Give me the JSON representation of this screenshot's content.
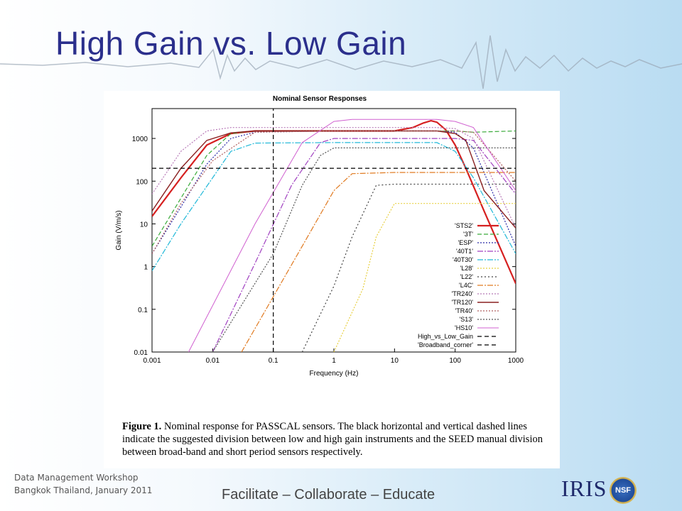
{
  "slide": {
    "title": "High Gain vs. Low Gain",
    "footer_line1": "Data  Management Workshop",
    "footer_line2": "Bangkok Thailand, January 2011",
    "tagline": "Facilitate – Collaborate – Educate",
    "logo_text": "IRIS",
    "nsf_text": "NSF"
  },
  "figure": {
    "caption_lead": "Figure 1.",
    "caption_text": " Nominal response for PASSCAL sensors.  The black horizontal and vertical dashed lines indicate the suggested division between low and high gain instruments and the SEED manual division between broad-band and short period sensors respectively."
  },
  "chart_data": {
    "type": "line",
    "title": "Nominal Sensor Responses",
    "xlabel": "Frequency (Hz)",
    "ylabel": "Gain (V/m/s)",
    "xscale": "log",
    "yscale": "log",
    "xlim": [
      0.001,
      1000
    ],
    "ylim": [
      0.01,
      5000
    ],
    "x_ticks": [
      "0.001",
      "0.01",
      "0.1",
      "1",
      "10",
      "100",
      "1000"
    ],
    "y_ticks": [
      "0.01",
      "0.1",
      "1",
      "10",
      "100",
      "1000"
    ],
    "legend_position": "bottom-right",
    "series": [
      {
        "name": "'STS2'",
        "color": "#d62020",
        "dash": "solid",
        "width": 2.2,
        "x": [
          0.001,
          0.003,
          0.008,
          0.02,
          0.05,
          1,
          10,
          20,
          30,
          40,
          50,
          70,
          100,
          150,
          300,
          1000
        ],
        "y": [
          15,
          120,
          700,
          1300,
          1500,
          1500,
          1500,
          1800,
          2300,
          2600,
          2400,
          1600,
          700,
          200,
          20,
          0.4
        ]
      },
      {
        "name": "'3T'",
        "color": "#3aaa3a",
        "dash": "6,3",
        "width": 1.2,
        "x": [
          0.001,
          0.003,
          0.008,
          0.02,
          0.05,
          1,
          10,
          50,
          100,
          200,
          1000
        ],
        "y": [
          3,
          40,
          400,
          1300,
          1500,
          1500,
          1500,
          1500,
          1500,
          1400,
          1500
        ]
      },
      {
        "name": "'ESP'",
        "color": "#2a2aa8",
        "dash": "2,2",
        "width": 1.2,
        "x": [
          0.001,
          0.003,
          0.008,
          0.02,
          0.05,
          1,
          10,
          50,
          100,
          200,
          1000
        ],
        "y": [
          2,
          25,
          250,
          1000,
          1400,
          1500,
          1500,
          1500,
          1400,
          600,
          3
        ]
      },
      {
        "name": "'40T1'",
        "color": "#a040c0",
        "dash": "8,2,2,2",
        "width": 1.2,
        "x": [
          0.01,
          0.05,
          0.2,
          0.6,
          1,
          10,
          50,
          100,
          200,
          1000
        ],
        "y": [
          0.01,
          1.2,
          80,
          800,
          1000,
          1000,
          1000,
          1000,
          900,
          50
        ]
      },
      {
        "name": "'40T30'",
        "color": "#20b8d8",
        "dash": "8,2,2,2",
        "width": 1.2,
        "x": [
          0.001,
          0.003,
          0.01,
          0.02,
          0.05,
          1,
          10,
          50,
          100,
          200,
          1000
        ],
        "y": [
          0.8,
          10,
          120,
          500,
          780,
          800,
          800,
          800,
          500,
          120,
          2
        ]
      },
      {
        "name": "'L28'",
        "color": "#e8d040",
        "dash": "2,2",
        "width": 1.2,
        "x": [
          1,
          3,
          5,
          10,
          50,
          100,
          1000
        ],
        "y": [
          0.01,
          0.3,
          5,
          30,
          30,
          30,
          30
        ]
      },
      {
        "name": "'L22'",
        "color": "#444444",
        "dash": "2,3",
        "width": 1.2,
        "x": [
          0.3,
          1,
          2,
          5,
          10,
          100,
          1000
        ],
        "y": [
          0.01,
          0.35,
          5,
          80,
          85,
          85,
          85
        ]
      },
      {
        "name": "'L4C'",
        "color": "#e07a20",
        "dash": "8,2,2,2",
        "width": 1.2,
        "x": [
          0.03,
          0.3,
          1,
          2,
          10,
          100,
          1000
        ],
        "y": [
          0.01,
          3,
          60,
          150,
          160,
          160,
          160
        ]
      },
      {
        "name": "'TR240'",
        "color": "#b87ab8",
        "dash": "2,2",
        "width": 1.2,
        "x": [
          0.001,
          0.003,
          0.008,
          0.02,
          0.04,
          1,
          10,
          50,
          100,
          200,
          1000
        ],
        "y": [
          50,
          500,
          1500,
          1800,
          1800,
          1800,
          1800,
          1800,
          1700,
          1000,
          8
        ]
      },
      {
        "name": "'TR120'",
        "color": "#8a2020",
        "dash": "solid",
        "width": 1.4,
        "x": [
          0.001,
          0.003,
          0.008,
          0.02,
          0.05,
          1,
          10,
          50,
          100,
          150,
          300,
          1000
        ],
        "y": [
          20,
          200,
          900,
          1350,
          1500,
          1500,
          1500,
          1500,
          1300,
          900,
          60,
          8
        ]
      },
      {
        "name": "'TR40'",
        "color": "#b06060",
        "dash": "2,2",
        "width": 1.2,
        "x": [
          0.001,
          0.003,
          0.01,
          0.05,
          1,
          10,
          50,
          100,
          200,
          1000
        ],
        "y": [
          2,
          30,
          300,
          1400,
          1500,
          1500,
          1500,
          1500,
          1400,
          100
        ]
      },
      {
        "name": "'S13'",
        "color": "#555555",
        "dash": "2,2",
        "width": 1.2,
        "x": [
          0.01,
          0.1,
          0.3,
          0.6,
          1,
          10,
          50,
          100,
          200,
          1000
        ],
        "y": [
          0.01,
          2,
          80,
          400,
          600,
          600,
          600,
          600,
          600,
          600
        ]
      },
      {
        "name": "'HS10'",
        "color": "#d060d0",
        "dash": "solid",
        "width": 1.0,
        "x": [
          0.004,
          0.05,
          0.3,
          1,
          2,
          10,
          30,
          50,
          100,
          200,
          1000
        ],
        "y": [
          0.01,
          10,
          800,
          2500,
          2800,
          2800,
          2800,
          2800,
          2500,
          1800,
          60
        ]
      },
      {
        "name": "High_vs_Low_Gain",
        "color": "#000000",
        "dash": "6,4",
        "width": 1.2,
        "x": [
          0.001,
          1000
        ],
        "y": [
          200,
          200
        ]
      },
      {
        "name": "'Broadband_corner'",
        "color": "#000000",
        "dash": "6,4",
        "width": 1.2,
        "x": [
          0.1,
          0.1
        ],
        "y": [
          0.01,
          5000
        ]
      }
    ]
  }
}
